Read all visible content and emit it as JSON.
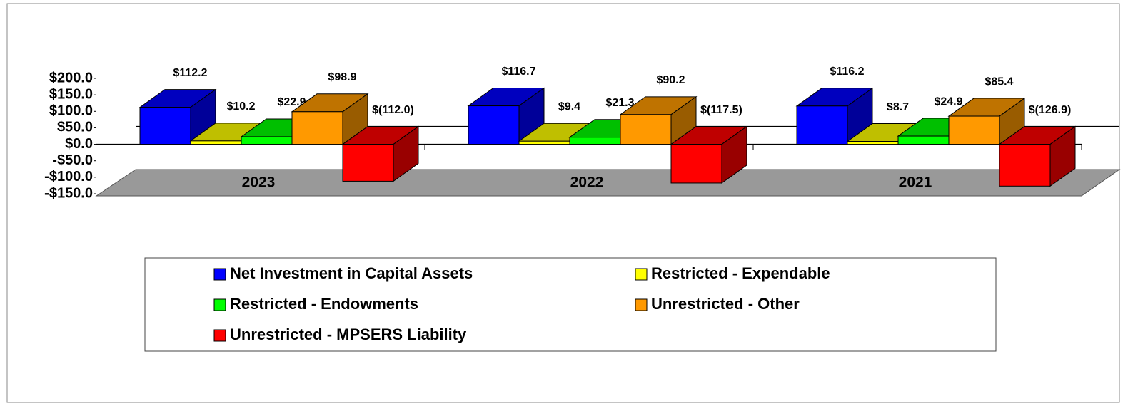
{
  "chart_data": {
    "type": "bar3d",
    "categories": [
      "2023",
      "2022",
      "2021"
    ],
    "series": [
      {
        "name": "Net Investment in Capital Assets",
        "color": "#0000ff",
        "values": [
          112.2,
          116.7,
          116.2
        ],
        "value_labels": [
          "$112.2",
          "$116.7",
          "$116.2"
        ]
      },
      {
        "name": "Restricted - Expendable",
        "color": "#ffff00",
        "values": [
          10.2,
          9.4,
          8.7
        ],
        "value_labels": [
          "$10.2",
          "$9.4",
          "$8.7"
        ]
      },
      {
        "name": "Restricted - Endowments",
        "color": "#00ff00",
        "values": [
          22.9,
          21.3,
          24.9
        ],
        "value_labels": [
          "$22.9",
          "$21.3",
          "$24.9"
        ]
      },
      {
        "name": "Unrestricted - Other",
        "color": "#ff9900",
        "values": [
          98.9,
          90.2,
          85.4
        ],
        "value_labels": [
          "$98.9",
          "$90.2",
          "$85.4"
        ]
      },
      {
        "name": "Unrestricted - MPSERS Liability",
        "color": "#ff0000",
        "values": [
          -112.0,
          -117.5,
          -126.9
        ],
        "value_labels": [
          "$(112.0)",
          "$(117.5)",
          "$(126.9)"
        ]
      }
    ],
    "ylim": [
      -150,
      200
    ],
    "yticks": [
      {
        "value": 200,
        "label": "$200.0"
      },
      {
        "value": 150,
        "label": "$150.0"
      },
      {
        "value": 100,
        "label": "$100.0"
      },
      {
        "value": 50,
        "label": "$50.0"
      },
      {
        "value": 0,
        "label": "$0.0"
      },
      {
        "value": -50,
        "label": "-$50.0"
      },
      {
        "value": -100,
        "label": "-$100.0"
      },
      {
        "value": -150,
        "label": "-$150.0"
      }
    ],
    "legend_position": "bottom"
  }
}
